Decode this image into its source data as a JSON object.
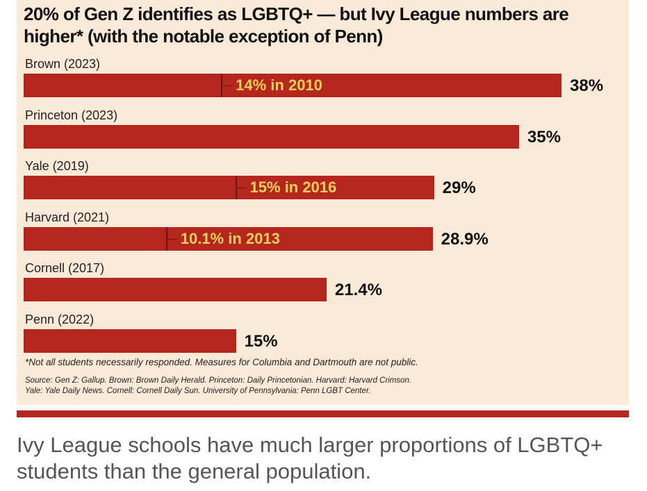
{
  "title": "20% of Gen Z identifies as LGBTQ+ — but Ivy League numbers are higher* (with the notable exception of Penn)",
  "colors": {
    "bar": "#b5261e",
    "background": "#fbead8",
    "marker_text": "#f6d05a",
    "marker_line": "#6e1410"
  },
  "chart_data": {
    "type": "bar",
    "orientation": "horizontal",
    "title": "20% of Gen Z identifies as LGBTQ+ — but Ivy League numbers are higher* (with the notable exception of Penn)",
    "xlabel": "",
    "ylabel": "",
    "xlim": [
      0,
      38
    ],
    "grid": false,
    "unit": "%",
    "categories": [
      "Brown (2023)",
      "Princeton (2023)",
      "Yale (2019)",
      "Harvard (2021)",
      "Cornell (2017)",
      "Penn (2022)"
    ],
    "values": [
      38,
      35,
      29,
      28.9,
      21.4,
      15
    ],
    "value_labels": [
      "38%",
      "35%",
      "29%",
      "28.9%",
      "21.4%",
      "15%"
    ],
    "annotations": [
      {
        "category": "Brown (2023)",
        "value": 14,
        "text": "14% in 2010"
      },
      {
        "category": "Princeton (2023)",
        "value": null,
        "text": ""
      },
      {
        "category": "Yale (2019)",
        "value": 15,
        "text": "15% in 2016"
      },
      {
        "category": "Harvard (2021)",
        "value": 10.1,
        "text": "10.1% in 2013"
      },
      {
        "category": "Cornell (2017)",
        "value": null,
        "text": ""
      },
      {
        "category": "Penn (2022)",
        "value": null,
        "text": ""
      }
    ]
  },
  "footnote": "*Not all students necessarily responded. Measures for Columbia and Dartmouth are not public.",
  "source_line1": "Source: Gen Z: Gallup. Brown: Brown Daily Herald. Princeton: Daily Princetonian. Harvard: Harvard Crimson.",
  "source_line2": "Yale: Yale Daily News. Cornell: Cornell Daily Sun. University of Pennsylvania: Penn LGBT Center.",
  "caption": "Ivy League schools have much larger proportions of LGBTQ+ students than the general population."
}
